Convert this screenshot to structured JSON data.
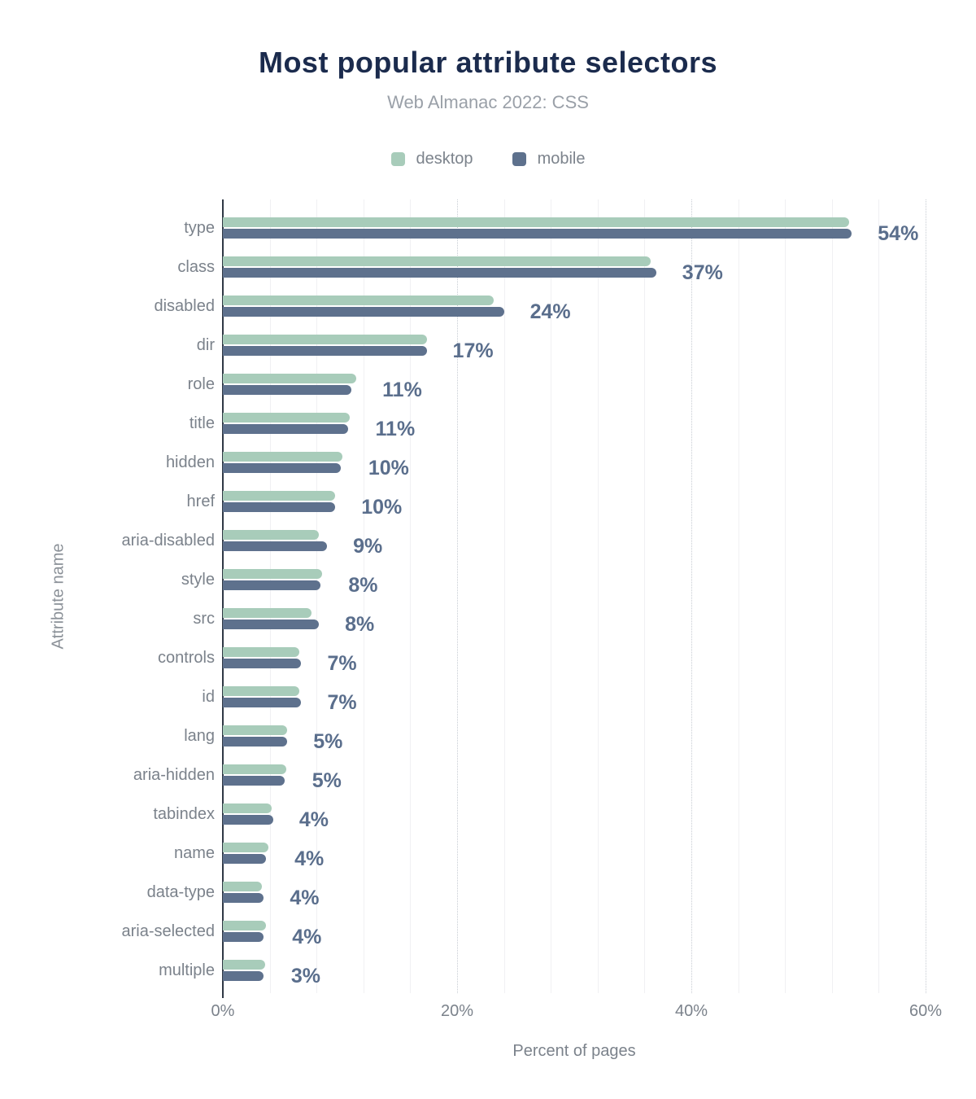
{
  "title": "Most popular attribute selectors",
  "subtitle": "Web Almanac 2022: CSS",
  "legend": [
    {
      "label": "desktop",
      "color": "#a8ccba"
    },
    {
      "label": "mobile",
      "color": "#5e718d"
    }
  ],
  "colors": {
    "desktop_bar": "#a8ccba",
    "mobile_bar": "#5e718d",
    "title_text": "#1b2b4d",
    "subtitle_text": "#9aa0a8",
    "value_label_text": "#5a6e8c",
    "axis_text": "#7b828b",
    "axis_line": "#2f3845"
  },
  "chart_data": {
    "type": "bar",
    "orientation": "horizontal",
    "title": "Most popular attribute selectors",
    "subtitle": "Web Almanac 2022: CSS",
    "xlabel": "Percent of pages",
    "ylabel": "Attribute name",
    "xlim": [
      0,
      62
    ],
    "x_ticks": [
      {
        "value": 0,
        "label": "0%"
      },
      {
        "value": 20,
        "label": "20%"
      },
      {
        "value": 40,
        "label": "40%"
      },
      {
        "value": 60,
        "label": "60%"
      }
    ],
    "grid": {
      "minor_step_pct": 4,
      "major_step_pct": 20,
      "legend_position": "top"
    },
    "categories": [
      "type",
      "class",
      "disabled",
      "dir",
      "role",
      "title",
      "hidden",
      "href",
      "aria-disabled",
      "style",
      "src",
      "controls",
      "id",
      "lang",
      "aria-hidden",
      "tabindex",
      "name",
      "data-type",
      "aria-selected",
      "multiple"
    ],
    "series": [
      {
        "name": "desktop",
        "color": "#a8ccba",
        "values": [
          53.5,
          36.5,
          23.1,
          17.4,
          11.4,
          10.8,
          10.2,
          9.6,
          8.2,
          8.5,
          7.6,
          6.5,
          6.5,
          5.5,
          5.4,
          4.2,
          3.9,
          3.3,
          3.7,
          3.6
        ]
      },
      {
        "name": "mobile",
        "color": "#5e718d",
        "values": [
          53.7,
          37.0,
          24.0,
          17.4,
          11.0,
          10.7,
          10.1,
          9.6,
          8.9,
          8.3,
          8.2,
          6.7,
          6.7,
          5.5,
          5.3,
          4.3,
          3.7,
          3.5,
          3.5,
          3.5
        ]
      }
    ],
    "value_labels": [
      "54%",
      "37%",
      "24%",
      "17%",
      "11%",
      "11%",
      "10%",
      "10%",
      "9%",
      "8%",
      "8%",
      "7%",
      "7%",
      "5%",
      "5%",
      "4%",
      "4%",
      "4%",
      "4%",
      "3%"
    ]
  }
}
